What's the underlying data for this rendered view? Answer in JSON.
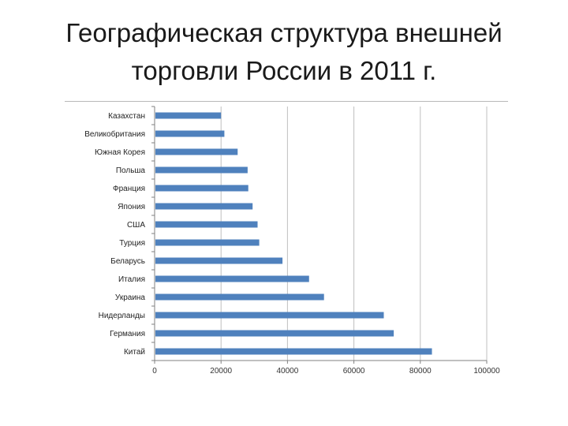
{
  "slide": {
    "title_line1": "Географическая структура внешней",
    "title_line2": "торговли России в 2011 г."
  },
  "chart_data": {
    "type": "bar",
    "orientation": "horizontal",
    "title": "",
    "xlabel": "",
    "ylabel": "",
    "categories": [
      "Казахстан",
      "Великобритания",
      "Южная Корея",
      "Польша",
      "Франция",
      "Япония",
      "США",
      "Турция",
      "Беларусь",
      "Италия",
      "Украина",
      "Нидерланды",
      "Германия",
      "Китай"
    ],
    "values": [
      20000,
      21000,
      25000,
      28000,
      28200,
      29500,
      31000,
      31500,
      38500,
      46500,
      51000,
      69000,
      72000,
      83500
    ],
    "xlim": [
      0,
      100000
    ],
    "xticks": [
      "0",
      "20000",
      "40000",
      "60000",
      "80000",
      "100000"
    ],
    "grid": true,
    "bar_color": "#4f81bd",
    "gridline_color": "#bfbfbf"
  }
}
